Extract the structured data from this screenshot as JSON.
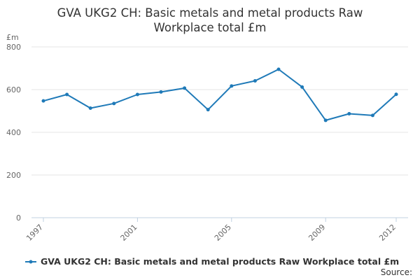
{
  "chart_data": {
    "type": "line",
    "title_line1": "GVA UKG2 CH: Basic metals and metal products Raw",
    "title_line2": "Workplace total £m",
    "unit_label": "£m",
    "ylim": [
      0,
      800
    ],
    "y_ticks": [
      0,
      200,
      400,
      600,
      800
    ],
    "x": [
      1997,
      1998,
      1999,
      2000,
      2001,
      2002,
      2003,
      2004,
      2005,
      2006,
      2007,
      2008,
      2009,
      2010,
      2011,
      2012
    ],
    "x_tick_labels": [
      1997,
      2001,
      2005,
      2009,
      2012
    ],
    "series": [
      {
        "name": "GVA UKG2 CH: Basic metals and metal products Raw Workplace total £m",
        "color": "#1f7ab8",
        "values": [
          547,
          577,
          513,
          535,
          577,
          589,
          607,
          506,
          617,
          641,
          695,
          612,
          456,
          487,
          479,
          578
        ]
      }
    ],
    "legend_position": "bottom",
    "grid": true,
    "source_label": "Source:"
  }
}
